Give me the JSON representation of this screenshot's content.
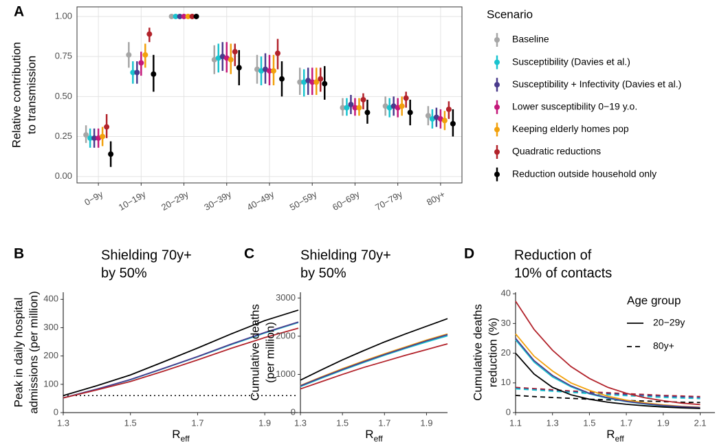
{
  "chart_data": [
    {
      "type": "pointrange",
      "panel_label": "A",
      "ylabel": [
        "Relative contribution",
        "to transmission"
      ],
      "categories": [
        "0−9y",
        "10−19y",
        "20−29y",
        "30−39y",
        "40−49y",
        "50−59y",
        "60−69y",
        "70−79y",
        "80y+"
      ],
      "ylim": [
        -0.04,
        1.06
      ],
      "yticks": [
        {
          "value": 0,
          "label": "0.00"
        },
        {
          "value": 0.25,
          "label": "0.25"
        },
        {
          "value": 0.5,
          "label": "0.50"
        },
        {
          "value": 0.75,
          "label": "0.75"
        },
        {
          "value": 1,
          "label": "1.00"
        }
      ],
      "grid": true,
      "legend_title": "Scenario",
      "series": [
        {
          "name": "Baseline",
          "color": "#a6a6a6",
          "values": [
            0.26,
            0.76,
            1,
            0.73,
            0.67,
            0.59,
            0.43,
            0.44,
            0.38
          ],
          "lower": [
            0.21,
            0.68,
            1,
            0.64,
            0.58,
            0.51,
            0.38,
            0.38,
            0.32
          ],
          "upper": [
            0.32,
            0.84,
            1,
            0.82,
            0.76,
            0.68,
            0.49,
            0.5,
            0.44
          ]
        },
        {
          "name": "Susceptibility (Davies et al.)",
          "color": "#19c3cf",
          "values": [
            0.24,
            0.65,
            1,
            0.74,
            0.66,
            0.59,
            0.43,
            0.43,
            0.36
          ],
          "lower": [
            0.18,
            0.58,
            1,
            0.65,
            0.57,
            0.5,
            0.38,
            0.37,
            0.3
          ],
          "upper": [
            0.3,
            0.72,
            1,
            0.83,
            0.75,
            0.67,
            0.49,
            0.49,
            0.42
          ]
        },
        {
          "name": "Susceptibility + Infectivity (Davies et al.)",
          "color": "#4a3a8c",
          "values": [
            0.24,
            0.65,
            1,
            0.75,
            0.67,
            0.6,
            0.45,
            0.44,
            0.37
          ],
          "lower": [
            0.18,
            0.58,
            1,
            0.66,
            0.58,
            0.51,
            0.39,
            0.38,
            0.31
          ],
          "upper": [
            0.3,
            0.72,
            1,
            0.84,
            0.77,
            0.68,
            0.51,
            0.5,
            0.43
          ]
        },
        {
          "name": "Lower susceptibility 0−19 y.o.",
          "color": "#c4187a",
          "values": [
            0.24,
            0.71,
            1,
            0.74,
            0.66,
            0.59,
            0.43,
            0.43,
            0.36
          ],
          "lower": [
            0.18,
            0.63,
            1,
            0.65,
            0.57,
            0.51,
            0.38,
            0.37,
            0.3
          ],
          "upper": [
            0.3,
            0.78,
            1,
            0.84,
            0.76,
            0.68,
            0.49,
            0.49,
            0.42
          ]
        },
        {
          "name": "Keeping elderly homes pop",
          "color": "#f2a10c",
          "values": [
            0.25,
            0.76,
            1,
            0.73,
            0.66,
            0.59,
            0.43,
            0.44,
            0.35
          ],
          "lower": [
            0.19,
            0.68,
            1,
            0.64,
            0.57,
            0.51,
            0.38,
            0.38,
            0.29
          ],
          "upper": [
            0.31,
            0.83,
            1,
            0.83,
            0.76,
            0.68,
            0.49,
            0.5,
            0.41
          ]
        },
        {
          "name": "Quadratic reductions",
          "color": "#b2222a",
          "values": [
            0.31,
            0.89,
            1,
            0.78,
            0.77,
            0.61,
            0.48,
            0.49,
            0.42
          ],
          "lower": [
            0.24,
            0.84,
            1,
            0.69,
            0.67,
            0.53,
            0.42,
            0.43,
            0.36
          ],
          "upper": [
            0.39,
            0.93,
            1,
            0.83,
            0.86,
            0.68,
            0.52,
            0.53,
            0.47
          ]
        },
        {
          "name": "Reduction outside household only",
          "color": "#000000",
          "values": [
            0.14,
            0.64,
            1,
            0.68,
            0.61,
            0.58,
            0.4,
            0.4,
            0.33
          ],
          "lower": [
            0.06,
            0.53,
            1,
            0.57,
            0.5,
            0.48,
            0.33,
            0.32,
            0.25
          ],
          "upper": [
            0.22,
            0.76,
            1,
            0.79,
            0.72,
            0.69,
            0.48,
            0.48,
            0.42
          ]
        }
      ]
    },
    {
      "type": "line",
      "panel_label": "B",
      "title": [
        "Shielding 70y+",
        "by 50%"
      ],
      "ylabel": [
        "Peak in daily hospital",
        "admissions (per million)"
      ],
      "xlabel": "R",
      "xlabel_subscript": "eff",
      "x": [
        1.3,
        1.4,
        1.5,
        1.6,
        1.7,
        1.8,
        1.9,
        2.0
      ],
      "xlim": [
        1.3,
        2.0
      ],
      "xticks": [
        1.3,
        1.5,
        1.7,
        1.9
      ],
      "ylim": [
        0,
        425
      ],
      "yticks": [
        0,
        100,
        200,
        300,
        400
      ],
      "hline": 60,
      "series": [
        {
          "color": "#19c3cf",
          "values": [
            52,
            83,
            116,
            156,
            197,
            240,
            281,
            318
          ]
        },
        {
          "color": "#4a3a8c",
          "values": [
            52,
            83,
            117,
            157,
            198,
            242,
            283,
            320
          ]
        },
        {
          "color": "#b2222a",
          "values": [
            52,
            80,
            110,
            147,
            186,
            227,
            265,
            298
          ]
        },
        {
          "color": "#000000",
          "values": [
            60,
            95,
            133,
            180,
            228,
            278,
            325,
            362
          ]
        }
      ]
    },
    {
      "type": "line",
      "panel_label": "C",
      "title": [
        "Shielding 70y+",
        "by 50%"
      ],
      "ylabel": [
        "Cumulative deaths",
        "(per million)"
      ],
      "xlabel": "R",
      "xlabel_subscript": "eff",
      "x": [
        1.3,
        1.4,
        1.5,
        1.6,
        1.7,
        1.8,
        1.9,
        2.0
      ],
      "xlim": [
        1.3,
        2.0
      ],
      "xticks": [
        1.3,
        1.5,
        1.7,
        1.9
      ],
      "ylim": [
        0,
        3150
      ],
      "yticks": [
        0,
        1000,
        2000,
        3000
      ],
      "series": [
        {
          "color": "#f2a10c",
          "values": [
            710,
            935,
            1150,
            1350,
            1540,
            1720,
            1900,
            2060
          ]
        },
        {
          "color": "#19c3cf",
          "values": [
            680,
            900,
            1110,
            1310,
            1500,
            1680,
            1850,
            2010
          ]
        },
        {
          "color": "#4a3a8c",
          "values": [
            700,
            920,
            1130,
            1330,
            1520,
            1700,
            1880,
            2040
          ]
        },
        {
          "color": "#b2222a",
          "values": [
            620,
            810,
            1000,
            1180,
            1340,
            1500,
            1650,
            1800
          ]
        },
        {
          "color": "#000000",
          "values": [
            850,
            1120,
            1380,
            1620,
            1850,
            2060,
            2260,
            2460
          ]
        }
      ]
    },
    {
      "type": "line",
      "panel_label": "D",
      "title": [
        "Reduction of",
        "10% of contacts"
      ],
      "ylabel": [
        "Cumulative deaths",
        "reduction (%)"
      ],
      "xlabel": "R",
      "xlabel_subscript": "eff",
      "x": [
        1.1,
        1.2,
        1.3,
        1.4,
        1.5,
        1.6,
        1.7,
        1.8,
        1.9,
        2.0,
        2.1
      ],
      "xlim": [
        1.1,
        2.18
      ],
      "xticks": [
        1.1,
        1.3,
        1.5,
        1.7,
        1.9,
        2.1
      ],
      "ylim": [
        0,
        40.5
      ],
      "yticks": [
        0,
        10,
        20,
        30,
        40
      ],
      "linetype_legend": {
        "title": "Age group",
        "entries": [
          {
            "label": "20−29y",
            "dash": "solid"
          },
          {
            "label": "80y+",
            "dash": "dashed"
          }
        ]
      },
      "series": [
        {
          "color": "#b2222a",
          "dash": "dashed",
          "values": [
            8.5,
            8.1,
            7.7,
            7.3,
            7.0,
            6.7,
            6.4,
            6.1,
            5.8,
            5.6,
            5.4
          ]
        },
        {
          "color": "#4a3a8c",
          "dash": "dashed",
          "values": [
            8.2,
            7.8,
            7.4,
            7.0,
            6.7,
            6.4,
            6.1,
            5.8,
            5.5,
            5.3,
            5.1
          ]
        },
        {
          "color": "#19c3cf",
          "dash": "dashed",
          "values": [
            8.0,
            7.6,
            7.2,
            6.8,
            6.4,
            6.0,
            5.7,
            5.4,
            5.1,
            4.9,
            4.7
          ]
        },
        {
          "color": "#000000",
          "dash": "dashed",
          "values": [
            5.8,
            5.4,
            5.1,
            4.8,
            4.5,
            4.3,
            4.1,
            3.9,
            3.7,
            3.5,
            3.4
          ]
        },
        {
          "color": "#b2222a",
          "dash": "solid",
          "values": [
            37.5,
            28,
            21,
            15.5,
            11.5,
            8.5,
            6.5,
            5,
            4,
            3.2,
            2.7
          ]
        },
        {
          "color": "#f2a10c",
          "dash": "solid",
          "values": [
            26.5,
            19,
            14,
            10,
            7.5,
            5.5,
            4.2,
            3.3,
            2.6,
            2.1,
            1.8
          ]
        },
        {
          "color": "#19c3cf",
          "dash": "solid",
          "values": [
            24.5,
            17,
            12,
            8.7,
            6.3,
            4.8,
            3.7,
            2.9,
            2.3,
            1.9,
            1.6
          ]
        },
        {
          "color": "#4a3a8c",
          "dash": "solid",
          "values": [
            25,
            17.5,
            12.5,
            9,
            6.5,
            5,
            3.8,
            3,
            2.4,
            2,
            1.7
          ]
        },
        {
          "color": "#000000",
          "dash": "solid",
          "values": [
            20,
            13,
            8.5,
            6,
            4.5,
            3.5,
            2.8,
            2.3,
            1.9,
            1.6,
            1.4
          ]
        }
      ]
    }
  ]
}
